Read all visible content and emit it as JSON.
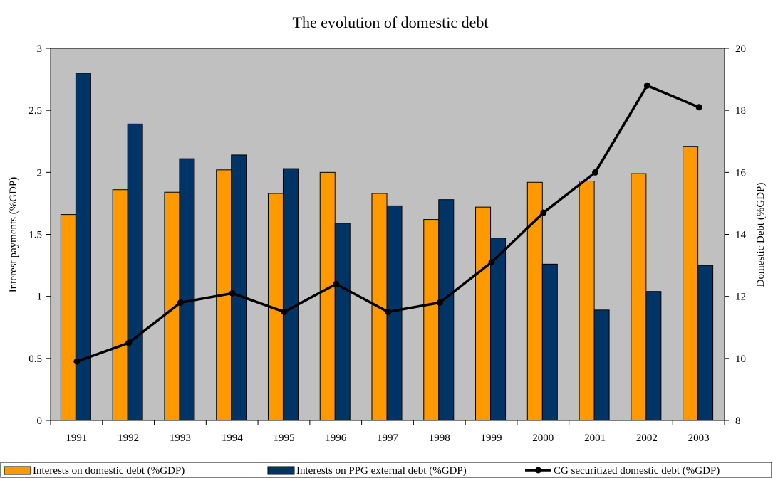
{
  "chart_data": {
    "type": "bar",
    "title": "The evolution of domestic debt",
    "ylabel": "Interest payments (%GDP)",
    "y2label": "Domestic Debt (%GDP)",
    "categories": [
      "1991",
      "1992",
      "1993",
      "1994",
      "1995",
      "1996",
      "1997",
      "1998",
      "1999",
      "2000",
      "2001",
      "2002",
      "2003"
    ],
    "ylim": [
      0,
      3
    ],
    "yticks": [
      0,
      0.5,
      1,
      1.5,
      2,
      2.5,
      3
    ],
    "ytick_labels": [
      "0",
      "0.5",
      "1",
      "1.5",
      "2",
      "2.5",
      "3"
    ],
    "y2lim": [
      8,
      20
    ],
    "y2ticks": [
      8,
      10,
      12,
      14,
      16,
      18,
      20
    ],
    "y2tick_labels": [
      "8",
      "10",
      "12",
      "14",
      "16",
      "18",
      "20"
    ],
    "grid": false,
    "plot_background": "#c0c0c0",
    "legend_position": "bottom",
    "series": [
      {
        "name": "Interests on domestic debt (%GDP)",
        "type": "bar",
        "axis": "left",
        "color": "#ff9900",
        "values": [
          1.66,
          1.86,
          1.84,
          2.02,
          1.83,
          2.0,
          1.83,
          1.62,
          1.72,
          1.92,
          1.93,
          1.99,
          2.21
        ]
      },
      {
        "name": "Interests on PPG external debt (%GDP)",
        "type": "bar",
        "axis": "left",
        "color": "#003366",
        "values": [
          2.8,
          2.39,
          2.11,
          2.14,
          2.03,
          1.59,
          1.73,
          1.78,
          1.47,
          1.26,
          0.89,
          1.04,
          1.25
        ]
      },
      {
        "name": "CG securitized domestic debt (%GDP)",
        "type": "line",
        "axis": "right",
        "color": "#000000",
        "values": [
          9.9,
          10.5,
          11.8,
          12.1,
          11.5,
          12.4,
          11.5,
          11.8,
          13.1,
          14.7,
          16.0,
          18.8,
          18.1
        ]
      }
    ]
  }
}
